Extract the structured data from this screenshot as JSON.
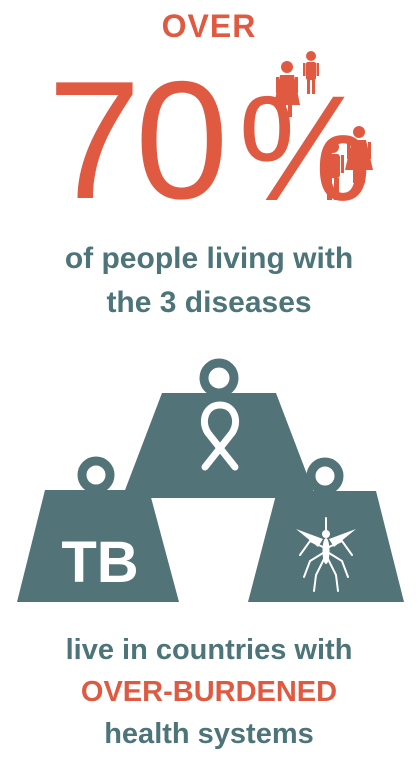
{
  "headline": {
    "prefix": "OVER",
    "number": "70",
    "percent_sign": "%"
  },
  "subtitle": {
    "line1": "of people living with",
    "line2": "the 3 diseases"
  },
  "weights": {
    "left_label": "TB",
    "center_icon": "awareness-ribbon-icon",
    "right_icon": "mosquito-icon"
  },
  "bottom": {
    "line1": "live in countries with",
    "line2": "OVER-BURDENED",
    "line3": "health systems"
  },
  "colors": {
    "accent": "#e05a42",
    "teal": "#4c7479",
    "weight_fill": "#527378"
  }
}
